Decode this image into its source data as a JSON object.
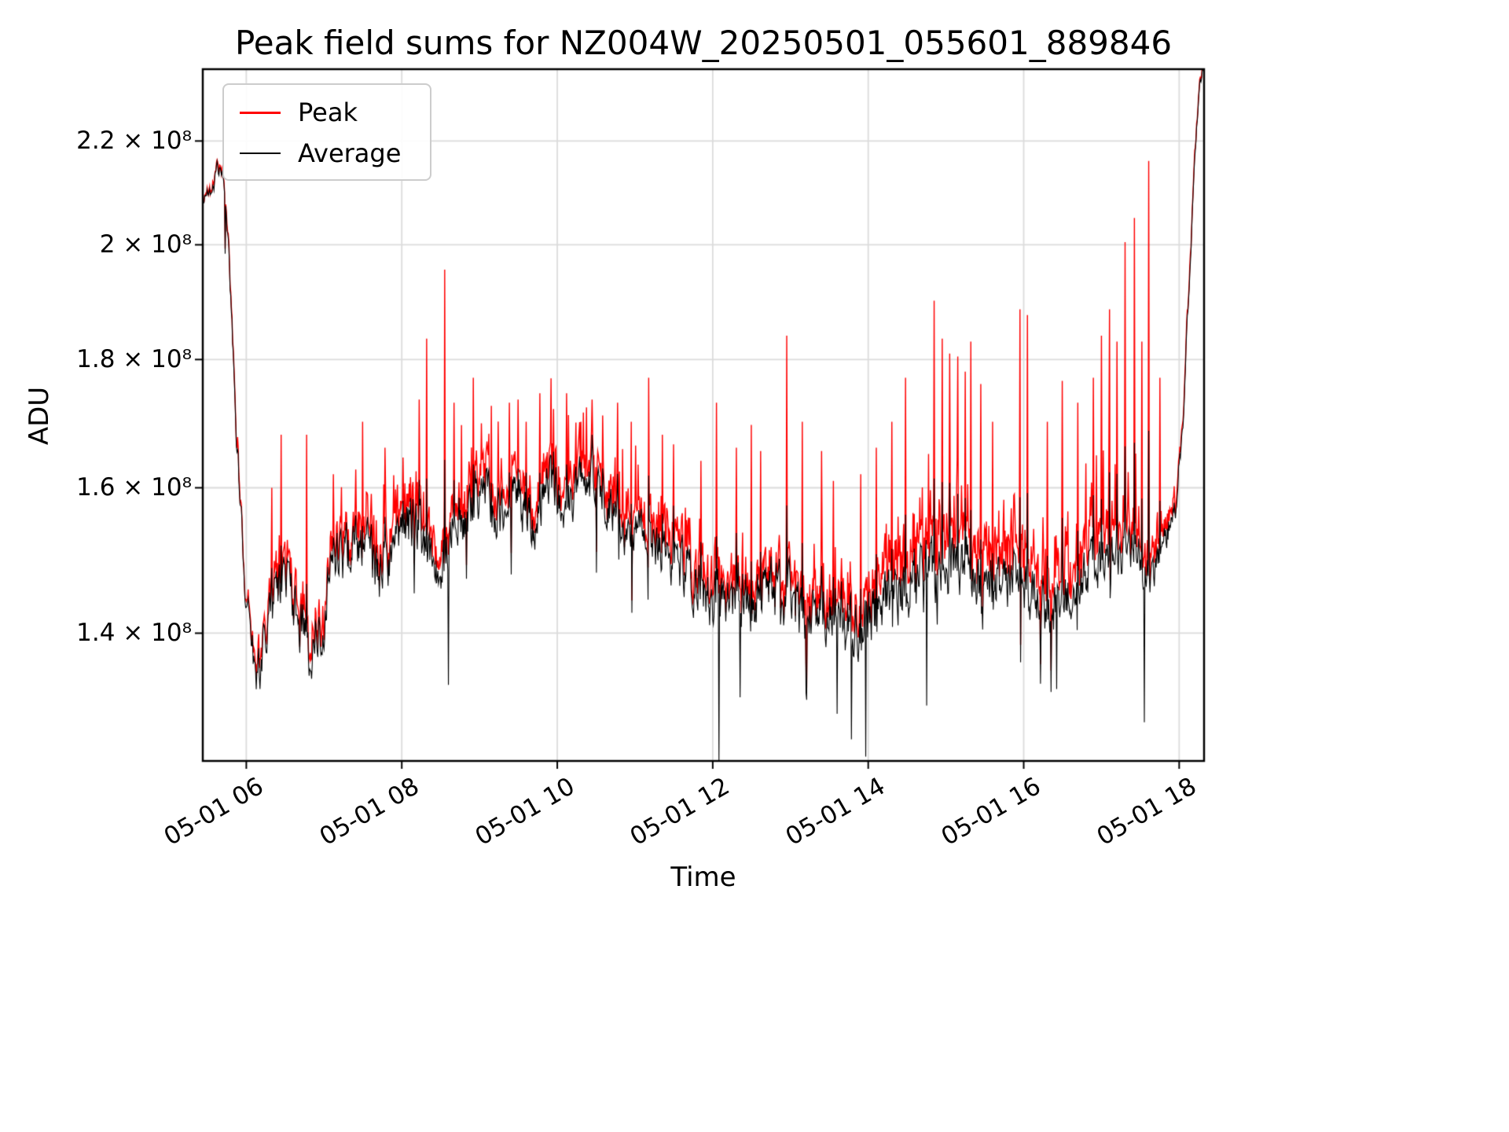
{
  "title": "Peak field sums for NZ004W_20250501_055601_889846",
  "axis": {
    "ylabel": "ADU",
    "xlabel": "Time"
  },
  "legend": {
    "items": [
      {
        "label": "Peak",
        "color": "#ff0000",
        "thickness": 3
      },
      {
        "label": "Average",
        "color": "#000000",
        "thickness": 2
      }
    ]
  },
  "chart_data": {
    "type": "line",
    "title": "Peak field sums for NZ004W_20250501_055601_889846",
    "xlabel": "Time",
    "ylabel": "ADU",
    "yscale": "log",
    "grid": true,
    "legend_position": "upper left",
    "xlim": [
      5.44,
      18.32
    ],
    "ylim": [
      124500000.0,
      235000000.0
    ],
    "x_ticks": [
      {
        "t": 6,
        "label": "05-01 06"
      },
      {
        "t": 8,
        "label": "05-01 08"
      },
      {
        "t": 10,
        "label": "05-01 10"
      },
      {
        "t": 12,
        "label": "05-01 12"
      },
      {
        "t": 14,
        "label": "05-01 14"
      },
      {
        "t": 16,
        "label": "05-01 16"
      },
      {
        "t": 18,
        "label": "05-01 18"
      }
    ],
    "y_ticks": [
      {
        "v": 140000000.0,
        "label": "1.4 × 10⁸"
      },
      {
        "v": 160000000.0,
        "label": "1.6 × 10⁸"
      },
      {
        "v": 180000000.0,
        "label": "1.8 × 10⁸"
      },
      {
        "v": 200000000.0,
        "label": "2 × 10⁸"
      },
      {
        "v": 220000000.0,
        "label": "2.2 × 10⁸"
      }
    ],
    "series": [
      {
        "name": "Peak",
        "color": "#ff0000"
      },
      {
        "name": "Average",
        "color": "#000000"
      }
    ],
    "average_keypoints": [
      [
        5.44,
        208000000.0
      ],
      [
        5.5,
        210000000.0
      ],
      [
        5.56,
        209000000.0
      ],
      [
        5.62,
        214500000.0
      ],
      [
        5.68,
        213000000.0
      ],
      [
        5.73,
        210000000.0
      ],
      [
        5.78,
        198000000.0
      ],
      [
        5.83,
        180000000.0
      ],
      [
        5.88,
        166000000.0
      ],
      [
        5.95,
        152000000.0
      ],
      [
        6.02,
        142000000.0
      ],
      [
        6.1,
        136000000.0
      ],
      [
        6.18,
        134500000.0
      ],
      [
        6.3,
        145000000.0
      ],
      [
        6.5,
        147000000.0
      ],
      [
        6.6,
        144000000.0
      ],
      [
        6.8,
        138000000.0
      ],
      [
        7.0,
        142000000.0
      ],
      [
        7.1,
        152000000.0
      ],
      [
        7.3,
        150000000.0
      ],
      [
        7.5,
        153000000.0
      ],
      [
        7.7,
        148000000.0
      ],
      [
        7.9,
        150000000.0
      ],
      [
        8.1,
        155000000.0
      ],
      [
        8.3,
        152000000.0
      ],
      [
        8.5,
        148000000.0
      ],
      [
        8.7,
        155000000.0
      ],
      [
        8.9,
        158000000.0
      ],
      [
        9.1,
        160000000.0
      ],
      [
        9.3,
        156000000.0
      ],
      [
        9.5,
        158000000.0
      ],
      [
        9.7,
        155000000.0
      ],
      [
        9.9,
        162000000.0
      ],
      [
        10.1,
        158000000.0
      ],
      [
        10.3,
        160000000.0
      ],
      [
        10.5,
        161000000.0
      ],
      [
        10.7,
        157000000.0
      ],
      [
        10.9,
        153000000.0
      ],
      [
        11.1,
        155000000.0
      ],
      [
        11.3,
        152000000.0
      ],
      [
        11.5,
        150000000.0
      ],
      [
        11.7,
        148000000.0
      ],
      [
        11.9,
        145000000.0
      ],
      [
        12.1,
        144000000.0
      ],
      [
        12.3,
        146000000.0
      ],
      [
        12.5,
        144000000.0
      ],
      [
        12.7,
        146000000.0
      ],
      [
        12.9,
        145000000.0
      ],
      [
        13.1,
        143000000.0
      ],
      [
        13.3,
        142000000.0
      ],
      [
        13.5,
        144000000.0
      ],
      [
        13.7,
        142000000.0
      ],
      [
        13.9,
        140000000.0
      ],
      [
        14.1,
        143000000.0
      ],
      [
        14.3,
        145000000.0
      ],
      [
        14.5,
        146000000.0
      ],
      [
        14.7,
        147000000.0
      ],
      [
        14.9,
        148000000.0
      ],
      [
        15.1,
        150000000.0
      ],
      [
        15.3,
        149000000.0
      ],
      [
        15.5,
        146000000.0
      ],
      [
        15.7,
        147000000.0
      ],
      [
        15.9,
        148000000.0
      ],
      [
        16.1,
        145000000.0
      ],
      [
        16.3,
        143000000.0
      ],
      [
        16.5,
        144000000.0
      ],
      [
        16.7,
        146000000.0
      ],
      [
        16.9,
        149000000.0
      ],
      [
        17.1,
        150000000.0
      ],
      [
        17.3,
        151000000.0
      ],
      [
        17.5,
        150000000.0
      ],
      [
        17.65,
        147000000.0
      ],
      [
        17.8,
        152000000.0
      ],
      [
        17.95,
        157000000.0
      ],
      [
        18.05,
        170000000.0
      ],
      [
        18.15,
        200000000.0
      ],
      [
        18.25,
        230000000.0
      ],
      [
        18.32,
        236000000.0
      ]
    ],
    "noise_amplitude_keypoints": [
      [
        5.44,
        0.004
      ],
      [
        5.8,
        0.01
      ],
      [
        6.1,
        0.02
      ],
      [
        7.0,
        0.025
      ],
      [
        9.0,
        0.025
      ],
      [
        11.0,
        0.02
      ],
      [
        12.0,
        0.025
      ],
      [
        14.0,
        0.03
      ],
      [
        16.0,
        0.025
      ],
      [
        17.5,
        0.02
      ],
      [
        18.0,
        0.01
      ],
      [
        18.32,
        0.004
      ]
    ],
    "peak_excess_keypoints": [
      [
        5.44,
        0.002
      ],
      [
        5.9,
        0.006
      ],
      [
        6.3,
        0.015
      ],
      [
        7.0,
        0.02
      ],
      [
        8.0,
        0.025
      ],
      [
        9.0,
        0.03
      ],
      [
        10.0,
        0.025
      ],
      [
        11.0,
        0.03
      ],
      [
        12.0,
        0.025
      ],
      [
        13.0,
        0.02
      ],
      [
        14.0,
        0.035
      ],
      [
        15.0,
        0.05
      ],
      [
        16.0,
        0.045
      ],
      [
        17.0,
        0.05
      ],
      [
        17.7,
        0.03
      ],
      [
        18.0,
        0.01
      ],
      [
        18.32,
        0.003
      ]
    ],
    "peak_spikes": [
      [
        5.63,
        215800000.0
      ],
      [
        6.33,
        160000000.0
      ],
      [
        6.45,
        168000000.0
      ],
      [
        6.78,
        168000000.0
      ],
      [
        7.12,
        162000000.0
      ],
      [
        7.5,
        170000000.0
      ],
      [
        7.78,
        166000000.0
      ],
      [
        8.02,
        164500000.0
      ],
      [
        8.22,
        173500000.0
      ],
      [
        8.32,
        183500000.0
      ],
      [
        8.55,
        195500000.0
      ],
      [
        8.67,
        173000000.0
      ],
      [
        8.92,
        177000000.0
      ],
      [
        9.15,
        172500000.0
      ],
      [
        9.38,
        173000000.0
      ],
      [
        9.5,
        173500000.0
      ],
      [
        9.6,
        170000000.0
      ],
      [
        9.78,
        174500000.0
      ],
      [
        9.95,
        172000000.0
      ],
      [
        10.12,
        174500000.0
      ],
      [
        10.3,
        170000000.0
      ],
      [
        10.45,
        173500000.0
      ],
      [
        10.58,
        171000000.0
      ],
      [
        10.78,
        173000000.0
      ],
      [
        10.95,
        170000000.0
      ],
      [
        11.18,
        177000000.0
      ],
      [
        11.35,
        168000000.0
      ],
      [
        11.5,
        166500000.0
      ],
      [
        11.85,
        164000000.0
      ],
      [
        12.05,
        173000000.0
      ],
      [
        12.3,
        166000000.0
      ],
      [
        12.5,
        169500000.0
      ],
      [
        12.62,
        165500000.0
      ],
      [
        12.95,
        184000000.0
      ],
      [
        13.15,
        170000000.0
      ],
      [
        13.4,
        165500000.0
      ],
      [
        13.55,
        161000000.0
      ],
      [
        13.9,
        162000000.0
      ],
      [
        14.1,
        166000000.0
      ],
      [
        14.3,
        170000000.0
      ],
      [
        14.48,
        177000000.0
      ],
      [
        14.85,
        190000000.0
      ],
      [
        14.95,
        183500000.0
      ],
      [
        15.05,
        181000000.0
      ],
      [
        15.15,
        180500000.0
      ],
      [
        15.25,
        178000000.0
      ],
      [
        15.32,
        183000000.0
      ],
      [
        15.45,
        176000000.0
      ],
      [
        15.6,
        170000000.0
      ],
      [
        15.95,
        188500000.0
      ],
      [
        16.05,
        187500000.0
      ],
      [
        16.3,
        170000000.0
      ],
      [
        16.5,
        176500000.0
      ],
      [
        16.7,
        173000000.0
      ],
      [
        16.9,
        177000000.0
      ],
      [
        17.0,
        184000000.0
      ],
      [
        17.1,
        188500000.0
      ],
      [
        17.2,
        183000000.0
      ],
      [
        17.3,
        200500000.0
      ],
      [
        17.42,
        205000000.0
      ],
      [
        17.52,
        183000000.0
      ],
      [
        17.61,
        216000000.0
      ],
      [
        17.75,
        177000000.0
      ]
    ],
    "average_dips": [
      [
        6.18,
        133000000.0
      ],
      [
        6.85,
        136000000.0
      ],
      [
        8.6,
        133500000.0
      ],
      [
        12.08,
        124500000.0
      ],
      [
        12.35,
        132000000.0
      ],
      [
        13.6,
        130000000.0
      ],
      [
        13.78,
        127000000.0
      ],
      [
        13.97,
        125000000.0
      ],
      [
        14.75,
        131000000.0
      ],
      [
        16.42,
        133000000.0
      ],
      [
        17.55,
        129000000.0
      ]
    ],
    "colors": {
      "grid": "#dcdcdc",
      "spine": "#000000",
      "background": "#ffffff"
    }
  }
}
